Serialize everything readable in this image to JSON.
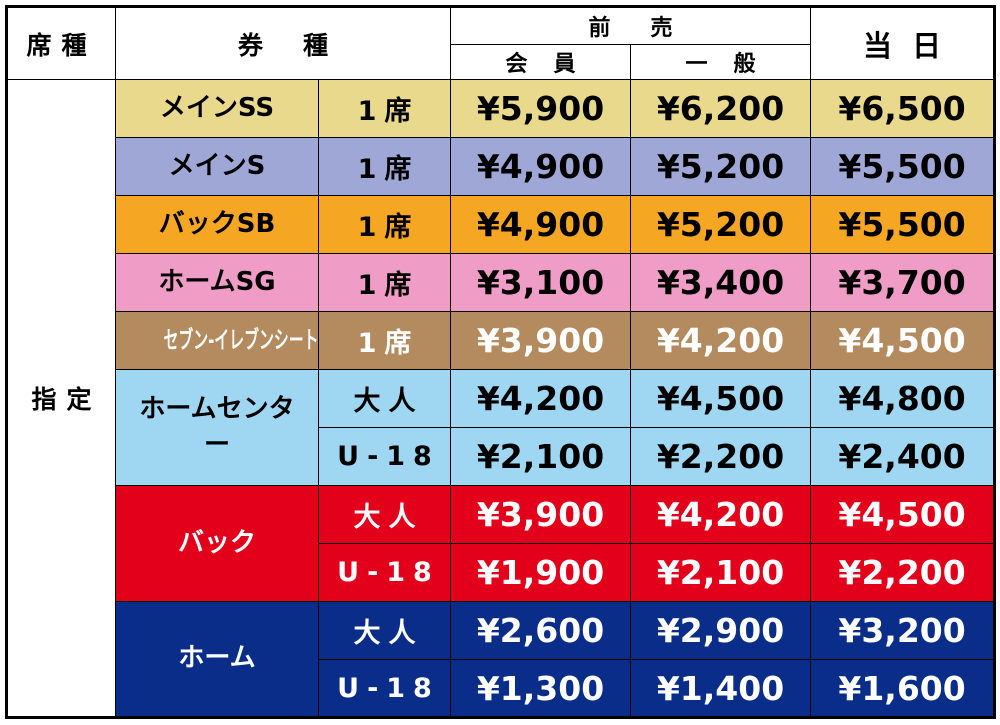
{
  "header": {
    "seat_type": "席種",
    "ticket_type": "券種",
    "advance": "前売",
    "member": "会員",
    "general": "一般",
    "day_of": "当日"
  },
  "section": "指定",
  "groups": [
    {
      "name": "メインSS",
      "color": "#e8d98c",
      "text_color": "#000",
      "rows": [
        {
          "ticket": "1席",
          "prices": [
            "¥5,900",
            "¥6,200",
            "¥6,500"
          ]
        }
      ]
    },
    {
      "name": "メインS",
      "color": "#9ea7d6",
      "text_color": "#000",
      "rows": [
        {
          "ticket": "1席",
          "prices": [
            "¥4,900",
            "¥5,200",
            "¥5,500"
          ]
        }
      ]
    },
    {
      "name": "バックSB",
      "color": "#f5a623",
      "text_color": "#000",
      "rows": [
        {
          "ticket": "1席",
          "prices": [
            "¥4,900",
            "¥5,200",
            "¥5,500"
          ]
        }
      ]
    },
    {
      "name": "ホームSG",
      "color": "#ef9cc6",
      "text_color": "#000",
      "rows": [
        {
          "ticket": "1席",
          "prices": [
            "¥3,100",
            "¥3,400",
            "¥3,700"
          ]
        }
      ]
    },
    {
      "name": "セブン-イレブンシート",
      "color": "#b48a5f",
      "text_color": "#fff",
      "rows": [
        {
          "ticket": "1席",
          "prices": [
            "¥3,900",
            "¥4,200",
            "¥4,500"
          ]
        }
      ]
    },
    {
      "name": "ホームセンター",
      "color": "#9fd7f2",
      "text_color": "#000",
      "rows": [
        {
          "ticket": "大人",
          "prices": [
            "¥4,200",
            "¥4,500",
            "¥4,800"
          ]
        },
        {
          "ticket": "U-18",
          "prices": [
            "¥2,100",
            "¥2,200",
            "¥2,400"
          ]
        }
      ]
    },
    {
      "name": "バック",
      "color": "#e2001a",
      "text_color": "#fff",
      "rows": [
        {
          "ticket": "大人",
          "prices": [
            "¥3,900",
            "¥4,200",
            "¥4,500"
          ]
        },
        {
          "ticket": "U-18",
          "prices": [
            "¥1,900",
            "¥2,100",
            "¥2,200"
          ]
        }
      ]
    },
    {
      "name": "ホーム",
      "color": "#0b2d8a",
      "text_color": "#fff",
      "rows": [
        {
          "ticket": "大人",
          "prices": [
            "¥2,600",
            "¥2,900",
            "¥3,200"
          ]
        },
        {
          "ticket": "U-18",
          "prices": [
            "¥1,300",
            "¥1,400",
            "¥1,600"
          ]
        }
      ]
    }
  ]
}
